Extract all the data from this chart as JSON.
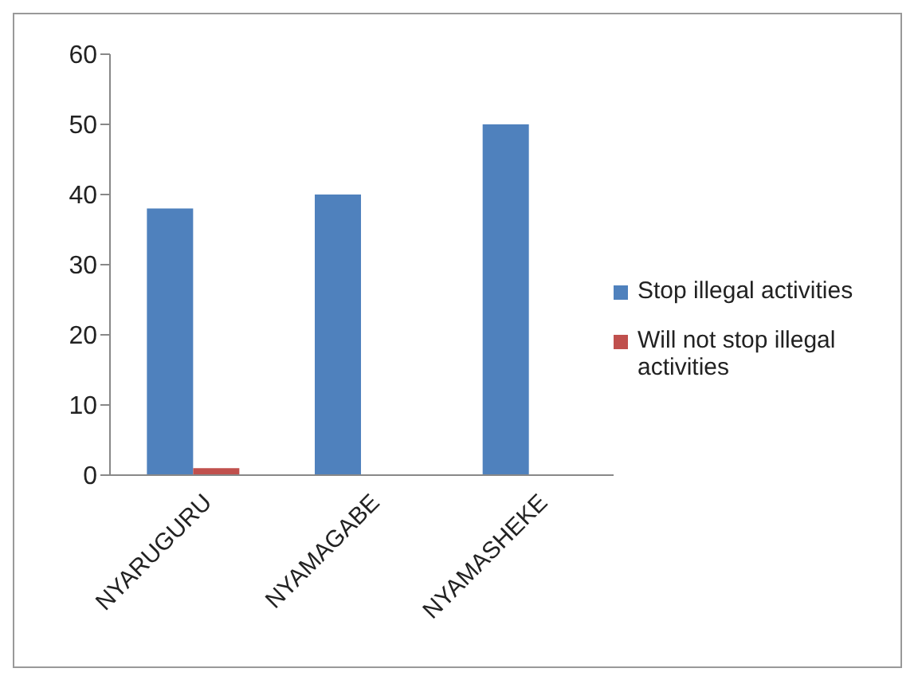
{
  "chart_data": {
    "type": "bar",
    "categories": [
      "NYARUGURU",
      "NYAMAGABE",
      "NYAMASHEKE"
    ],
    "series": [
      {
        "name": "Stop illegal activities",
        "color": "#4f81bd",
        "values": [
          38,
          40,
          50
        ]
      },
      {
        "name": "Will not stop illegal activities",
        "color": "#c0504d",
        "values": [
          1,
          0,
          0
        ]
      }
    ],
    "ylim": [
      0,
      60
    ],
    "yticks": [
      0,
      10,
      20,
      30,
      40,
      50,
      60
    ],
    "grid": false,
    "legend": "right"
  }
}
